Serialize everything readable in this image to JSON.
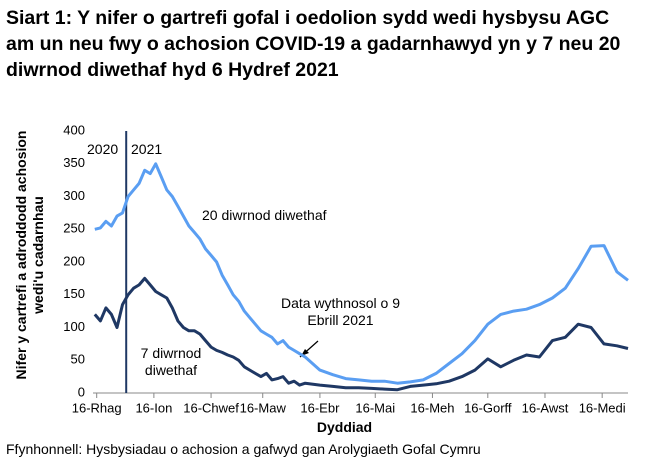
{
  "chart_data": {
    "type": "line",
    "title": "Siart 1: Y nifer o gartrefi gofal i oedolion sydd wedi hysbysu AGC am un neu fwy o achosion COVID-19 a gadarnhawyd yn y 7 neu 20 diwrnod diwethaf hyd 6 Hydref 2021",
    "y_label": "Nifer y cartrefi a adroddodd achosion wedi'u cadarnhau",
    "x_label": "Dyddiad",
    "source": "Ffynhonnell: Hysbysiadau o achosion a gafwyd gan Arolygiaeth Gofal Cymru",
    "annotations": {
      "year_left": "2020",
      "year_right": "2021",
      "year_divider": "2021-01-01",
      "weekly_note": "Data wythnosol o 9 Ebrill 2021"
    },
    "x": [
      "2020-12-15",
      "2020-12-18",
      "2020-12-21",
      "2020-12-24",
      "2020-12-27",
      "2020-12-30",
      "2021-01-02",
      "2021-01-05",
      "2021-01-08",
      "2021-01-11",
      "2021-01-14",
      "2021-01-17",
      "2021-01-20",
      "2021-01-23",
      "2021-01-26",
      "2021-01-29",
      "2021-02-01",
      "2021-02-04",
      "2021-02-07",
      "2021-02-10",
      "2021-02-13",
      "2021-02-16",
      "2021-02-19",
      "2021-02-22",
      "2021-02-25",
      "2021-02-28",
      "2021-03-03",
      "2021-03-06",
      "2021-03-09",
      "2021-03-12",
      "2021-03-15",
      "2021-03-18",
      "2021-03-21",
      "2021-03-24",
      "2021-03-27",
      "2021-03-30",
      "2021-04-02",
      "2021-04-05",
      "2021-04-08",
      "2021-04-16",
      "2021-04-23",
      "2021-04-30",
      "2021-05-07",
      "2021-05-14",
      "2021-05-21",
      "2021-05-28",
      "2021-06-04",
      "2021-06-11",
      "2021-06-18",
      "2021-06-25",
      "2021-07-02",
      "2021-07-09",
      "2021-07-16",
      "2021-07-23",
      "2021-07-30",
      "2021-08-06",
      "2021-08-13",
      "2021-08-20",
      "2021-08-27",
      "2021-09-03",
      "2021-09-10",
      "2021-09-17",
      "2021-09-24",
      "2021-09-30"
    ],
    "series": [
      {
        "name": "20 diwrnod diwethaf",
        "color": "#5a9ef2",
        "values": [
          250,
          252,
          262,
          255,
          270,
          275,
          300,
          310,
          320,
          340,
          335,
          350,
          330,
          310,
          300,
          285,
          270,
          255,
          245,
          235,
          220,
          210,
          200,
          180,
          165,
          150,
          140,
          125,
          115,
          105,
          95,
          90,
          85,
          75,
          80,
          70,
          65,
          60,
          55,
          35,
          28,
          22,
          20,
          18,
          18,
          15,
          17,
          20,
          30,
          45,
          60,
          80,
          105,
          120,
          125,
          128,
          135,
          145,
          160,
          190,
          224,
          225,
          185,
          172
        ]
      },
      {
        "name": "7 diwrnod diwethaf",
        "color": "#1f3864",
        "values": [
          120,
          110,
          130,
          120,
          100,
          135,
          150,
          160,
          165,
          175,
          165,
          155,
          150,
          145,
          130,
          110,
          100,
          95,
          95,
          90,
          80,
          70,
          65,
          62,
          58,
          55,
          50,
          40,
          35,
          30,
          25,
          30,
          20,
          22,
          25,
          15,
          18,
          12,
          15,
          12,
          10,
          8,
          8,
          7,
          6,
          5,
          10,
          12,
          14,
          18,
          25,
          35,
          52,
          40,
          50,
          58,
          55,
          80,
          85,
          105,
          100,
          75,
          72,
          68
        ]
      }
    ],
    "xlim": [
      "2020-12-14",
      "2021-09-30"
    ],
    "xticks": [
      {
        "value": "2020-12-16",
        "label": "16-Rhag"
      },
      {
        "value": "2021-01-16",
        "label": "16-Ion"
      },
      {
        "value": "2021-02-16",
        "label": "16-Chwef"
      },
      {
        "value": "2021-03-16",
        "label": "16-Maw"
      },
      {
        "value": "2021-04-16",
        "label": "16-Ebr"
      },
      {
        "value": "2021-05-16",
        "label": "16-Mai"
      },
      {
        "value": "2021-06-16",
        "label": "16-Meh"
      },
      {
        "value": "2021-07-16",
        "label": "16-Gorff"
      },
      {
        "value": "2021-08-16",
        "label": "16-Awst"
      },
      {
        "value": "2021-09-16",
        "label": "16-Medi"
      }
    ],
    "ylim": [
      0,
      400
    ],
    "yticks": [
      0,
      50,
      100,
      150,
      200,
      250,
      300,
      350,
      400
    ]
  }
}
